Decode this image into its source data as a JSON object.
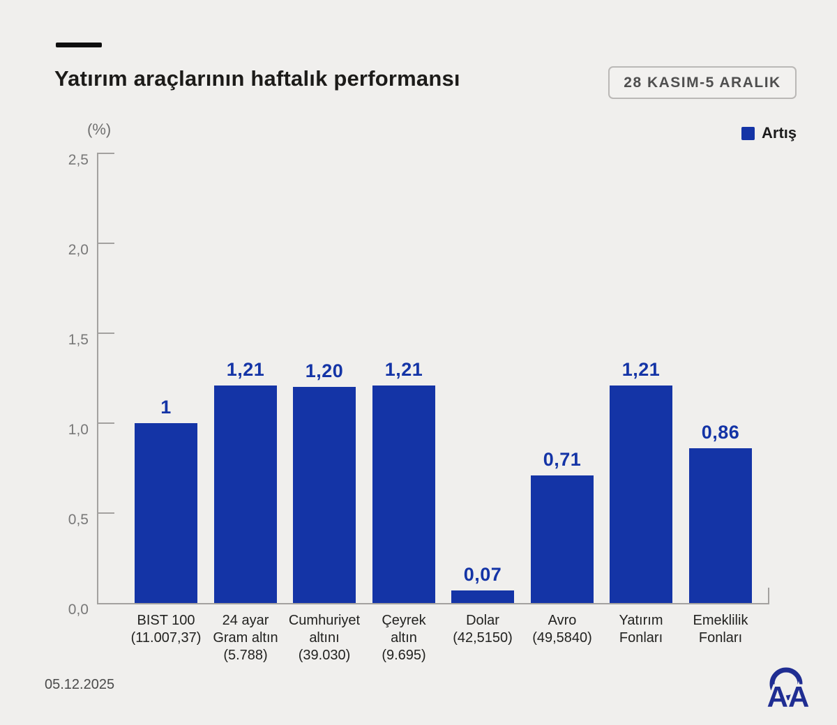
{
  "header": {
    "title": "Yatırım araçlarının haftalık performansı",
    "date_range_badge": "28 KASIM-5 ARALIK"
  },
  "axis_unit_label": "(%)",
  "chart_data": {
    "type": "bar",
    "title": "Yatırım araçlarının haftalık performansı",
    "subtitle": "28 KASIM-5 ARALIK",
    "ylabel": "(%)",
    "xlabel": "",
    "ylim": [
      0,
      2.5
    ],
    "grid": false,
    "legend_position": "top-right",
    "legend": [
      {
        "label": "Artış",
        "color": "#1434a6"
      }
    ],
    "bar_color": "#1434a6",
    "categories": [
      [
        "BIST 100",
        "(11.007,37)"
      ],
      [
        "24 ayar",
        "Gram altın",
        "(5.788)"
      ],
      [
        "Cumhuriyet",
        "altını",
        "(39.030)"
      ],
      [
        "Çeyrek",
        "altın",
        "(9.695)"
      ],
      [
        "Dolar",
        "(42,5150)"
      ],
      [
        "Avro",
        "(49,5840)"
      ],
      [
        "Yatırım",
        "Fonları"
      ],
      [
        "Emeklilik",
        "Fonları"
      ]
    ],
    "values": [
      1,
      1.21,
      1.2,
      1.21,
      0.07,
      0.71,
      1.21,
      0.86
    ],
    "value_labels": [
      "1",
      "1,21",
      "1,20",
      "1,21",
      "0,07",
      "0,71",
      "1,21",
      "0,86"
    ],
    "yticks": {
      "values": [
        0,
        0.5,
        1,
        1.5,
        2,
        2.5
      ],
      "labels": [
        "0,0",
        "0,5",
        "1,0",
        "1,5",
        "2,0",
        "2,5"
      ]
    }
  },
  "footer": {
    "date": "05.12.2025",
    "logo_text": "AA"
  },
  "colors": {
    "background": "#f0efed",
    "bar": "#1434a6",
    "value_text": "#1434a6",
    "axis": "#a3a19f",
    "logo": "#1f2d92"
  }
}
